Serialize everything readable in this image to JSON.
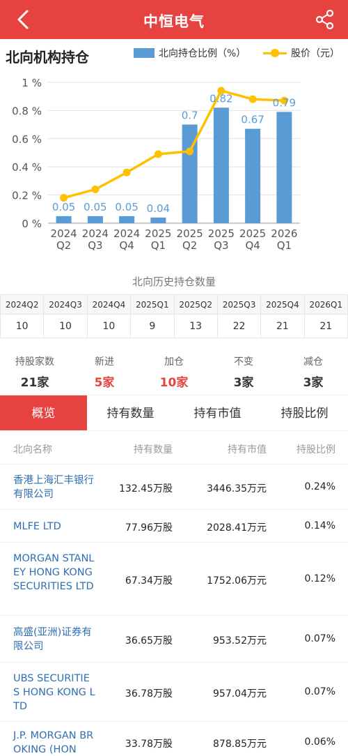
{
  "header": {
    "title": "中恒电气"
  },
  "section": {
    "title": "北向机构持仓"
  },
  "legend": {
    "bar_label": "北向持仓比例（%）",
    "line_label": "股价（元）"
  },
  "chart_data": {
    "type": "bar",
    "categories": [
      "2024\nQ2",
      "2024\nQ3",
      "2024\nQ4",
      "2025\nQ1",
      "2025\nQ2",
      "2025\nQ3",
      "2025\nQ4",
      "2026\nQ1"
    ],
    "series": [
      {
        "name": "北向持仓比例（%）",
        "type": "bar",
        "values": [
          0.05,
          0.05,
          0.05,
          0.04,
          0.7,
          0.82,
          0.67,
          0.79
        ],
        "labels": [
          "0.05",
          "0.05",
          "0.05",
          "0.04",
          "0.7",
          "0.82",
          "0.67",
          "0.79"
        ]
      },
      {
        "name": "股价（元）",
        "type": "line",
        "values": [
          0.18,
          0.24,
          0.36,
          0.49,
          0.51,
          0.94,
          0.88,
          0.87
        ]
      }
    ],
    "yticks": [
      "0 %",
      "0.2 %",
      "0.4 %",
      "0.6 %",
      "0.8 %",
      "1 %"
    ],
    "ylim": [
      0,
      1
    ],
    "colors": {
      "bar": "#5b9bd5",
      "line": "#ffc000",
      "label": "#5b9bd5"
    }
  },
  "history": {
    "caption": "北向历史持仓数量",
    "quarters": [
      "2024Q2",
      "2024Q3",
      "2024Q4",
      "2025Q1",
      "2025Q2",
      "2025Q3",
      "2025Q4",
      "2026Q1"
    ],
    "counts": [
      "10",
      "10",
      "10",
      "9",
      "13",
      "22",
      "21",
      "21"
    ]
  },
  "stats": [
    {
      "label": "持股家数",
      "value": "21家"
    },
    {
      "label": "新进",
      "value": "5家"
    },
    {
      "label": "加仓",
      "value": "10家"
    },
    {
      "label": "不变",
      "value": "3家"
    },
    {
      "label": "减仓",
      "value": "3家"
    }
  ],
  "tabs": [
    "概览",
    "持有数量",
    "持有市值",
    "持股比例"
  ],
  "list": {
    "headers": [
      "北向名称",
      "持有数量",
      "持有市值",
      "持股比例"
    ],
    "rows": [
      {
        "name": "香港上海汇丰银行有限公司",
        "qty": "132.45万股",
        "value": "3446.35万元",
        "ratio": "0.24%"
      },
      {
        "name": "MLFE LTD",
        "qty": "77.96万股",
        "value": "2028.41万元",
        "ratio": "0.14%"
      },
      {
        "name": "MORGAN STANLEY HONG KONG SECURITIES LTD",
        "qty": "67.34万股",
        "value": "1752.06万元",
        "ratio": "0.12%"
      },
      {
        "name": "高盛(亚洲)证券有限公司",
        "qty": "36.65万股",
        "value": "953.52万元",
        "ratio": "0.07%"
      },
      {
        "name": "UBS SECURITIES HONG KONG LTD",
        "qty": "36.78万股",
        "value": "957.04万元",
        "ratio": "0.07%"
      },
      {
        "name": "J.P. MORGAN BROKING (HON",
        "qty": "33.78万股",
        "value": "878.85万元",
        "ratio": "0.06%"
      }
    ]
  },
  "colors": {
    "brand": "#e64340",
    "link": "#2f6fb3"
  },
  "icons": {
    "back": "chevron-left-icon",
    "share": "share-icon"
  }
}
